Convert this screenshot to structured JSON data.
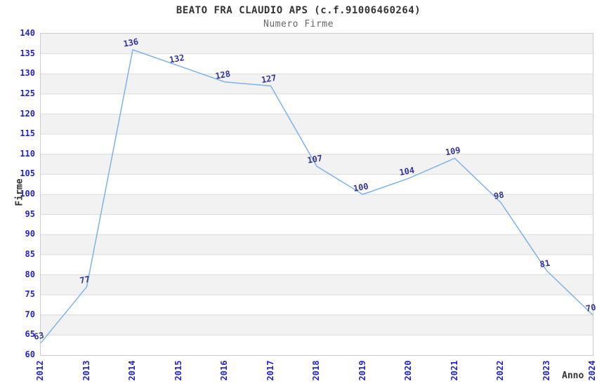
{
  "chart_data": {
    "type": "line",
    "title": "BEATO FRA CLAUDIO APS (c.f.91006460264)",
    "subtitle": "Numero Firme",
    "xlabel": "Anno",
    "ylabel": "Firme",
    "x": [
      2012,
      2013,
      2014,
      2015,
      2016,
      2017,
      2018,
      2019,
      2020,
      2021,
      2022,
      2023,
      2024
    ],
    "values": [
      63,
      77,
      136,
      132,
      128,
      127,
      107,
      100,
      104,
      109,
      98,
      81,
      70
    ],
    "series_name": "Numero Firme",
    "ylim": [
      60,
      140
    ],
    "ytick_step": 5,
    "grid": true,
    "banded_rows": true,
    "legend_position": "none",
    "data_labels_shown": true,
    "colors": {
      "line": "#7fb2e8",
      "tick_labels": "#2323cb",
      "data_labels": "#333399",
      "band": "#f2f2f2",
      "gridline": "#dcdcdc",
      "plot_border": "#cccccc",
      "title": "#333333",
      "subtitle": "#666666",
      "axis_titles": "#333333"
    }
  }
}
